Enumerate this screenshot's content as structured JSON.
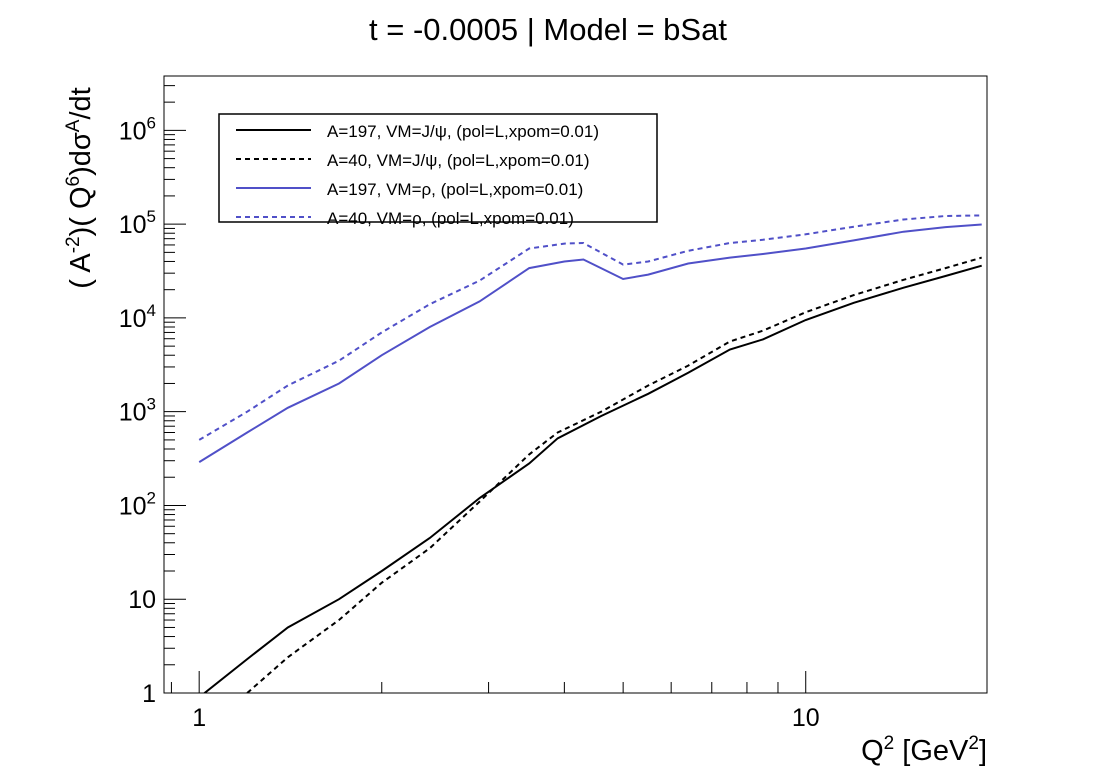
{
  "chart_data": {
    "type": "line",
    "title": "t = -0.0005 | Model = bSat",
    "xlabel": {
      "main": "Q",
      "sup": "2",
      "pre_unit": " [GeV",
      "unit_sup": "2",
      "post": "]"
    },
    "ylabel": {
      "p1": "( A",
      "p1sup": "-2",
      "p2": ")( Q",
      "p2sup": "6",
      "p3": ")dσ",
      "p3sup": "A",
      "p4": "/dt"
    },
    "x_scale": "log",
    "y_scale": "log",
    "xlim": [
      0.875,
      19.9
    ],
    "ylim": [
      1,
      3800000
    ],
    "x_ticklabels": [
      {
        "value": 1,
        "label": "1"
      },
      {
        "value": 10,
        "label": "10"
      }
    ],
    "y_ticklabels": [
      {
        "value": 1,
        "base": "1",
        "exp": ""
      },
      {
        "value": 10,
        "base": "10",
        "exp": ""
      },
      {
        "value": 100,
        "base": "10",
        "exp": "2"
      },
      {
        "value": 1000,
        "base": "10",
        "exp": "3"
      },
      {
        "value": 10000,
        "base": "10",
        "exp": "4"
      },
      {
        "value": 100000,
        "base": "10",
        "exp": "5"
      },
      {
        "value": 1000000,
        "base": "10",
        "exp": "6"
      }
    ],
    "legend_position": "top-left",
    "series": [
      {
        "name": "A=197, VM=J/ψ, (pol=L,xpom=0.01)",
        "color": "#000000",
        "dash": "solid",
        "x": [
          1.0,
          1.2,
          1.4,
          1.7,
          2.0,
          2.4,
          2.9,
          3.5,
          3.9,
          4.6,
          5.5,
          6.4,
          7.5,
          8.5,
          10.0,
          12.0,
          14.5,
          17.0,
          19.5
        ],
        "y": [
          0.9,
          2.3,
          5.0,
          10,
          20,
          45,
          120,
          280,
          520,
          900,
          1550,
          2600,
          4600,
          5900,
          9500,
          14500,
          21000,
          28000,
          36000
        ]
      },
      {
        "name": "A=40, VM=J/ψ, (pol=L,xpom=0.01)",
        "color": "#000000",
        "dash": "dashed",
        "x": [
          1.2,
          1.4,
          1.7,
          2.0,
          2.4,
          2.9,
          3.5,
          3.9,
          4.6,
          5.5,
          6.4,
          7.5,
          8.5,
          10.0,
          12.0,
          14.5,
          17.0,
          19.5
        ],
        "y": [
          1.0,
          2.4,
          6.0,
          15,
          35,
          110,
          350,
          600,
          1000,
          1900,
          3100,
          5600,
          7300,
          11500,
          17500,
          25500,
          34000,
          44000
        ]
      },
      {
        "name": "A=197, VM=ρ, (pol=L,xpom=0.01)",
        "color": "#5050c8",
        "dash": "solid",
        "x": [
          1.0,
          1.2,
          1.4,
          1.7,
          2.0,
          2.4,
          2.9,
          3.5,
          4.0,
          4.3,
          5.0,
          5.5,
          6.4,
          7.5,
          8.5,
          10.0,
          12.0,
          14.5,
          17.0,
          19.5
        ],
        "y": [
          290,
          600,
          1100,
          2000,
          4000,
          8000,
          15000,
          34000,
          40000,
          42000,
          26000,
          29000,
          38000,
          44000,
          48000,
          55000,
          67000,
          83000,
          93000,
          99000
        ]
      },
      {
        "name": "A=40, VM=ρ, (pol=L,xpom=0.01)",
        "color": "#5050c8",
        "dash": "dashed",
        "x": [
          1.0,
          1.2,
          1.4,
          1.7,
          2.0,
          2.4,
          2.9,
          3.5,
          4.0,
          4.3,
          5.0,
          5.5,
          6.4,
          7.5,
          8.5,
          10.0,
          12.0,
          14.5,
          17.0,
          19.5
        ],
        "y": [
          500,
          1000,
          1900,
          3500,
          7000,
          14000,
          25000,
          55000,
          62000,
          63000,
          37000,
          40000,
          52000,
          63000,
          68000,
          78000,
          94000,
          112000,
          122000,
          124000
        ]
      }
    ]
  }
}
